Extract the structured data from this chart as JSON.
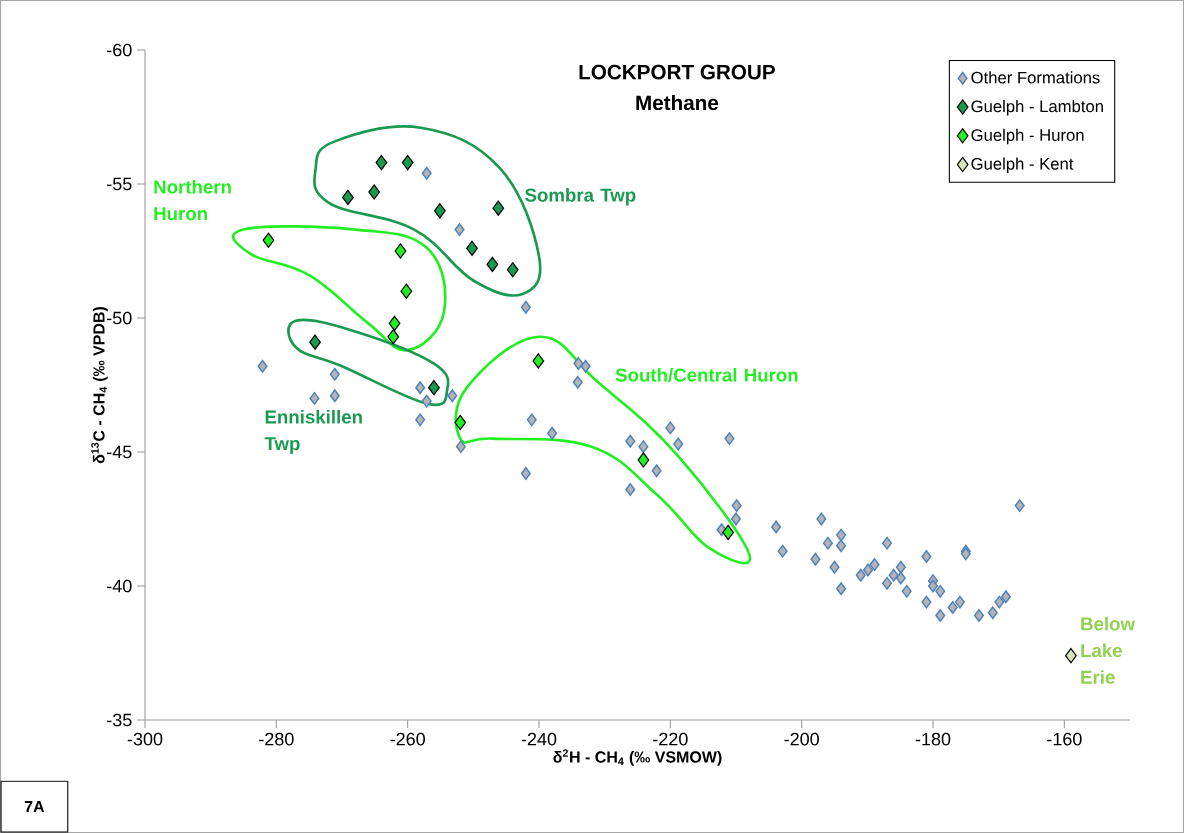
{
  "chart_data": {
    "type": "scatter",
    "title": "LOCKPORT GROUP",
    "subtitle": "Methane",
    "xlabel": "δ$^{2}$H - CH$_{4}$ (‰ VSMOW)",
    "ylabel": "δ$^{13}$C - CH$_{4}$ (‰ VPDB)",
    "xlim": [
      -300,
      -150
    ],
    "xticks": [
      -300,
      -280,
      -260,
      -240,
      -220,
      -200,
      -180,
      -160
    ],
    "ylim": [
      -35,
      -60
    ],
    "yticks": [
      -60,
      -55,
      -50,
      -45,
      -40,
      -35
    ],
    "marker": "diamond",
    "legend": "top right",
    "grid": false,
    "series": [
      {
        "name": "Other Formations",
        "color": "#b4b4b4",
        "x": [
          -257.1,
          -252.1,
          -242.0,
          -282.1,
          -271.1,
          -274.2,
          -271.1,
          -258.1,
          -257.1,
          -258.1,
          -253.2,
          -251.9,
          -241.1,
          -238.0,
          -242.0,
          -234.0,
          -232.9,
          -234.1,
          -220.0,
          -226.1,
          -224.1,
          -218.8,
          -222.1,
          -211.0,
          -226.1,
          -209.9,
          -210.0,
          -212.2,
          -203.9,
          -202.9,
          -197.0,
          -194.0,
          -196.0,
          -194.0,
          -187.0,
          -181.0,
          -175.0,
          -175.0,
          -166.8,
          -197.9,
          -195.0,
          -194.0,
          -188.9,
          -189.9,
          -191.0,
          -184.9,
          -186.0,
          -184.9,
          -187.0,
          -184.0,
          -180.0,
          -180.0,
          -178.9,
          -181.0,
          -178.9,
          -175.9,
          -177.0,
          -173.0,
          -170.9,
          -169.9,
          -168.9
        ],
        "values": [
          -55.4,
          -53.3,
          -50.4,
          -48.2,
          -47.9,
          -47.0,
          -47.1,
          -47.4,
          -46.9,
          -46.2,
          -47.1,
          -45.2,
          -46.2,
          -45.7,
          -44.2,
          -48.3,
          -48.2,
          -47.6,
          -45.9,
          -45.4,
          -45.2,
          -45.3,
          -44.3,
          -45.5,
          -43.6,
          -43.0,
          -42.5,
          -42.1,
          -42.2,
          -41.3,
          -42.5,
          -41.9,
          -41.6,
          -41.5,
          -41.6,
          -41.1,
          -41.3,
          -41.2,
          -43.0,
          -41.0,
          -40.7,
          -39.9,
          -40.8,
          -40.6,
          -40.4,
          -40.7,
          -40.4,
          -40.3,
          -40.1,
          -39.8,
          -40.2,
          -40.0,
          -39.8,
          -39.4,
          -38.9,
          -39.4,
          -39.2,
          -38.9,
          -39.0,
          -39.4,
          -39.6
        ]
      },
      {
        "name": "Guelph - Lambton",
        "color": "#1a9a50",
        "x": [
          -264.0,
          -260.0,
          -265.1,
          -269.1,
          -255.1,
          -246.2,
          -250.2,
          -247.1,
          -244.0,
          -274.1,
          -256.0
        ],
        "values": [
          -55.8,
          -55.8,
          -54.7,
          -54.5,
          -54.0,
          -54.1,
          -52.6,
          -52.0,
          -51.8,
          -49.1,
          -47.4
        ]
      },
      {
        "name": "Guelph - Huron",
        "color": "#22ee22",
        "x": [
          -281.2,
          -261.1,
          -260.2,
          -262.0,
          -262.2,
          -252.0,
          -240.1,
          -224.1,
          -211.2
        ],
        "values": [
          -52.9,
          -52.5,
          -51.0,
          -49.8,
          -49.3,
          -46.1,
          -48.4,
          -44.7,
          -42.0
        ]
      },
      {
        "name": "Guelph - Kent",
        "color": "#d7e4bd",
        "x": [
          -159.0
        ],
        "values": [
          -37.4
        ]
      }
    ],
    "annotations": [
      "Northern Huron",
      "Sombra Twp",
      "Enniskillen Twp",
      "South/Central Huron",
      "Below Lake Erie",
      "7A"
    ]
  }
}
